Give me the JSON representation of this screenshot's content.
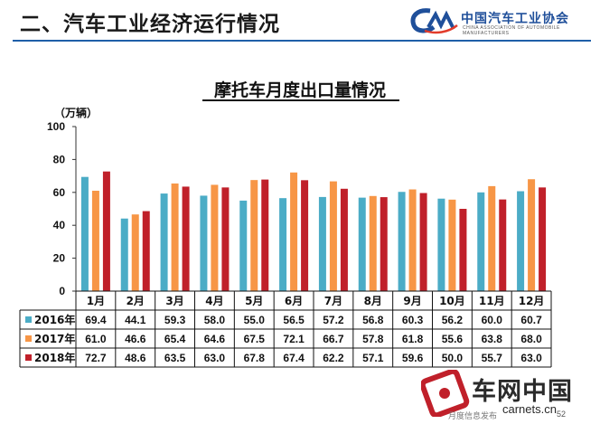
{
  "header": {
    "section_title": "二、汽车工业经济运行情况",
    "logo_cn": "中国汽车工业协会",
    "logo_en": "CHINA ASSOCIATION OF AUTOMOBILE MANUFACTURERS"
  },
  "footer": {
    "watermark_cn": "车网中国",
    "watermark_url": "carnets.cn",
    "footer_text": "月度信息发布",
    "page_number": "52"
  },
  "colors": {
    "s2016": "#4bacc6",
    "s2017": "#f79646",
    "s2018": "#c0202a",
    "rule": "#1f5fa8"
  },
  "chart_data": {
    "type": "bar",
    "title": "摩托车月度出口量情况",
    "ylabel": "（万辆）",
    "ylim": [
      0,
      100
    ],
    "yticks": [
      "0",
      "20",
      "40",
      "60",
      "80",
      "100"
    ],
    "categories": [
      "1月",
      "2月",
      "3月",
      "4月",
      "5月",
      "6月",
      "7月",
      "8月",
      "9月",
      "10月",
      "11月",
      "12月"
    ],
    "series": [
      {
        "name": "2016年",
        "values": [
          "69.4",
          "44.1",
          "59.3",
          "58.0",
          "55.0",
          "56.5",
          "57.2",
          "56.8",
          "60.3",
          "56.2",
          "60.0",
          "60.7"
        ]
      },
      {
        "name": "2017年",
        "values": [
          "61.0",
          "46.6",
          "65.4",
          "64.6",
          "67.5",
          "72.1",
          "66.7",
          "57.8",
          "61.8",
          "55.6",
          "63.8",
          "68.0"
        ]
      },
      {
        "name": "2018年",
        "values": [
          "72.7",
          "48.6",
          "63.5",
          "63.0",
          "67.8",
          "67.4",
          "62.2",
          "57.1",
          "59.6",
          "50.0",
          "55.7",
          "63.0"
        ]
      }
    ],
    "data_table": true,
    "legend": "table-left"
  }
}
